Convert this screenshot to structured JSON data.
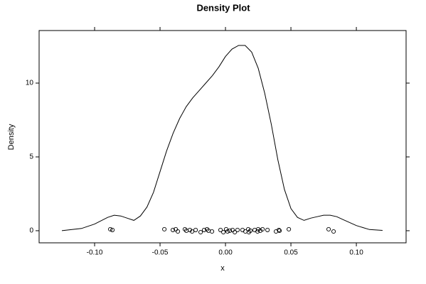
{
  "chart_data": {
    "type": "density",
    "title": "Density Plot",
    "xlabel": "x",
    "ylabel": "Density",
    "xlim": [
      -0.1424,
      0.138
    ],
    "ylim": [
      -0.82,
      13.56
    ],
    "xticks": [
      {
        "value": -0.1,
        "label": "-0.10"
      },
      {
        "value": -0.05,
        "label": "-0.05"
      },
      {
        "value": 0,
        "label": "0.00"
      },
      {
        "value": 0.05,
        "label": "0.05"
      },
      {
        "value": 0.1,
        "label": "0.10"
      }
    ],
    "yticks": [
      0,
      5,
      10
    ],
    "color": "#000000",
    "curve": {
      "x": [
        -0.125,
        -0.11,
        -0.1,
        -0.09,
        -0.085,
        -0.08,
        -0.075,
        -0.07,
        -0.065,
        -0.06,
        -0.055,
        -0.05,
        -0.045,
        -0.04,
        -0.035,
        -0.03,
        -0.025,
        -0.02,
        -0.015,
        -0.01,
        -0.005,
        0,
        0.005,
        0.01,
        0.015,
        0.02,
        0.025,
        0.03,
        0.035,
        0.04,
        0.045,
        0.05,
        0.055,
        0.06,
        0.065,
        0.07,
        0.075,
        0.08,
        0.085,
        0.09,
        0.1,
        0.11,
        0.12
      ],
      "y": [
        0.0,
        0.15,
        0.45,
        0.9,
        1.05,
        1.0,
        0.85,
        0.7,
        1.0,
        1.6,
        2.6,
        4.0,
        5.4,
        6.6,
        7.6,
        8.4,
        9.0,
        9.5,
        10.0,
        10.5,
        11.1,
        11.8,
        12.3,
        12.55,
        12.55,
        12.1,
        11.0,
        9.3,
        7.2,
        4.8,
        2.8,
        1.5,
        0.9,
        0.7,
        0.85,
        0.95,
        1.05,
        1.05,
        0.95,
        0.75,
        0.35,
        0.08,
        0.02
      ]
    },
    "points": {
      "x": [
        -0.088,
        -0.0864,
        -0.0467,
        -0.0402,
        -0.038,
        -0.0364,
        -0.031,
        -0.0299,
        -0.0272,
        -0.0255,
        -0.0228,
        -0.019,
        -0.0163,
        -0.0141,
        -0.013,
        -0.0103,
        -0.0038,
        -0.0016,
        0.0005,
        0.0016,
        0.0033,
        0.0054,
        0.0071,
        0.0092,
        0.013,
        0.0152,
        0.0174,
        0.0179,
        0.019,
        0.0223,
        0.0245,
        0.025,
        0.0266,
        0.0283,
        0.0321,
        0.0386,
        0.0408,
        0.0413,
        0.0484,
        0.0788,
        0.0826
      ],
      "y": [
        0.1,
        0.05,
        0.1,
        0.05,
        0.1,
        -0.05,
        0.1,
        0,
        0.05,
        -0.05,
        0.05,
        -0.1,
        0.05,
        0.1,
        0,
        -0.05,
        0.05,
        -0.1,
        0.1,
        -0.05,
        0,
        0.05,
        -0.1,
        0.05,
        0.05,
        -0.05,
        0.1,
        -0.1,
        0,
        0.05,
        -0.05,
        0.1,
        0,
        0.1,
        0.05,
        -0.05,
        0.05,
        0,
        0.1,
        0.1,
        -0.05
      ]
    }
  }
}
